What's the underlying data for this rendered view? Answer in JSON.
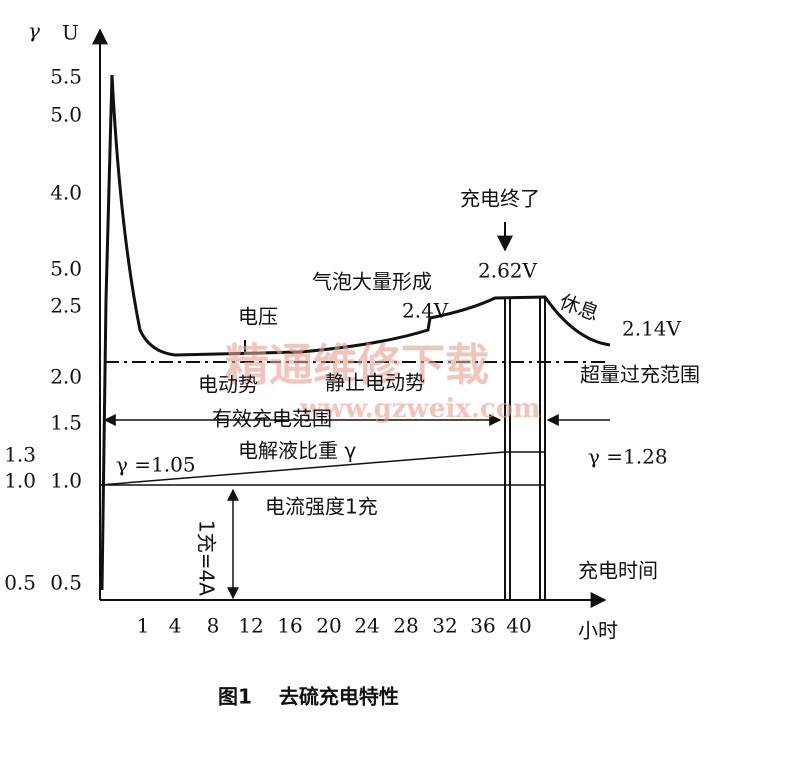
{
  "axes": {
    "y_symbol": "γ",
    "u_symbol": "U",
    "u_ticks": [
      "5.5",
      "5.0",
      "4.0",
      "5.0",
      "2.5",
      "2.0",
      "1.5",
      "1.0",
      "0.5"
    ],
    "gamma_ticks": [
      "1.3",
      "1.0",
      "0.5"
    ],
    "x_ticks": [
      "1",
      "4",
      "8",
      "12",
      "16",
      "20",
      "24",
      "28",
      "32",
      "36",
      "40"
    ],
    "x_unit": "小时",
    "x_label": "充电时间"
  },
  "annotations": {
    "end_of_charge": "充电终了",
    "v_end": "2.62V",
    "bubbles": "气泡大量形成",
    "v_bubbles": "2.4V",
    "rest": "休息",
    "v_rest": "2.14V",
    "voltage": "电压",
    "emf": "电动势",
    "static_emf": "静止电动势",
    "overcharge": "超量过充范围",
    "effective": "有效充电范围",
    "gamma_start": "γ =1.05",
    "electrolyte": "电解液比重 γ",
    "gamma_end": "γ =1.28",
    "current": "电流强度1充",
    "current_value": "1充=4A"
  },
  "watermark": {
    "title": "精通维修下载",
    "url": "www.gzweix.com"
  },
  "caption": "图1　 去硫充电特性"
}
